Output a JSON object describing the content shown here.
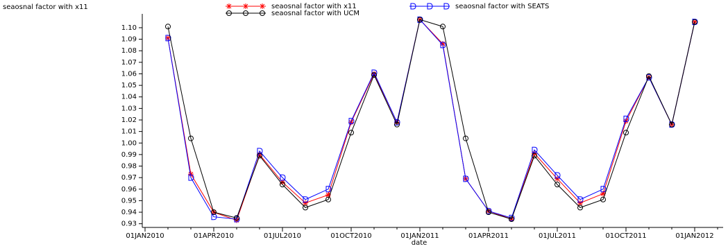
{
  "chart_data": {
    "type": "line",
    "ylabel": "seaosnal factor with x11",
    "xlabel": "date",
    "x": [
      "2010-02",
      "2010-03",
      "2010-04",
      "2010-05",
      "2010-06",
      "2010-07",
      "2010-08",
      "2010-09",
      "2010-10",
      "2010-11",
      "2010-12",
      "2011-01",
      "2011-02",
      "2011-03",
      "2011-04",
      "2011-05",
      "2011-06",
      "2011-07",
      "2011-08",
      "2011-09",
      "2011-10",
      "2011-11",
      "2011-12",
      "2012-01"
    ],
    "series": [
      {
        "name": "seaosnal factor with x11",
        "color": "#ff0000",
        "marker": "star",
        "values": [
          1.091,
          0.973,
          0.94,
          0.933,
          0.99,
          0.966,
          0.948,
          0.955,
          1.018,
          1.06,
          1.018,
          1.107,
          1.086,
          0.969,
          0.941,
          0.934,
          0.991,
          0.969,
          0.948,
          0.956,
          1.019,
          1.057,
          1.016,
          1.105
        ]
      },
      {
        "name": "seaosnal factor with SEATS",
        "color": "#0000ff",
        "marker": "d",
        "values": [
          1.091,
          0.97,
          0.936,
          0.934,
          0.993,
          0.97,
          0.951,
          0.96,
          1.019,
          1.061,
          1.018,
          1.107,
          1.085,
          0.969,
          0.941,
          0.935,
          0.994,
          0.972,
          0.951,
          0.96,
          1.021,
          1.057,
          1.016,
          1.105
        ]
      },
      {
        "name": "seaosnal factor with UCM",
        "color": "#000000",
        "marker": "circle",
        "values": [
          1.101,
          1.004,
          0.94,
          0.935,
          0.989,
          0.964,
          0.944,
          0.951,
          1.009,
          1.059,
          1.016,
          1.107,
          1.101,
          1.004,
          0.94,
          0.934,
          0.989,
          0.964,
          0.944,
          0.951,
          1.009,
          1.058,
          1.016,
          1.105
        ]
      }
    ],
    "xlim": [
      "2010-01",
      "2012-02"
    ],
    "xticks": [
      {
        "value": "2010-01",
        "label": "01JAN2010"
      },
      {
        "value": "2010-04",
        "label": "01APR2010"
      },
      {
        "value": "2010-07",
        "label": "01JUL2010"
      },
      {
        "value": "2010-10",
        "label": "01OCT2010"
      },
      {
        "value": "2011-01",
        "label": "01JAN2011"
      },
      {
        "value": "2011-04",
        "label": "01APR2011"
      },
      {
        "value": "2011-07",
        "label": "01JUL2011"
      },
      {
        "value": "2011-10",
        "label": "01OCT2011"
      },
      {
        "value": "2012-01",
        "label": "01JAN2012"
      }
    ],
    "ylim": [
      0.928,
      1.112
    ],
    "yticks": [
      0.93,
      0.94,
      0.95,
      0.96,
      0.97,
      0.98,
      0.99,
      {
        "value": 1.0,
        "label": "1.00"
      },
      1.01,
      1.02,
      1.03,
      1.04,
      1.05,
      1.06,
      1.07,
      1.08,
      1.09,
      {
        "value": 1.1,
        "label": "1.10"
      }
    ]
  }
}
